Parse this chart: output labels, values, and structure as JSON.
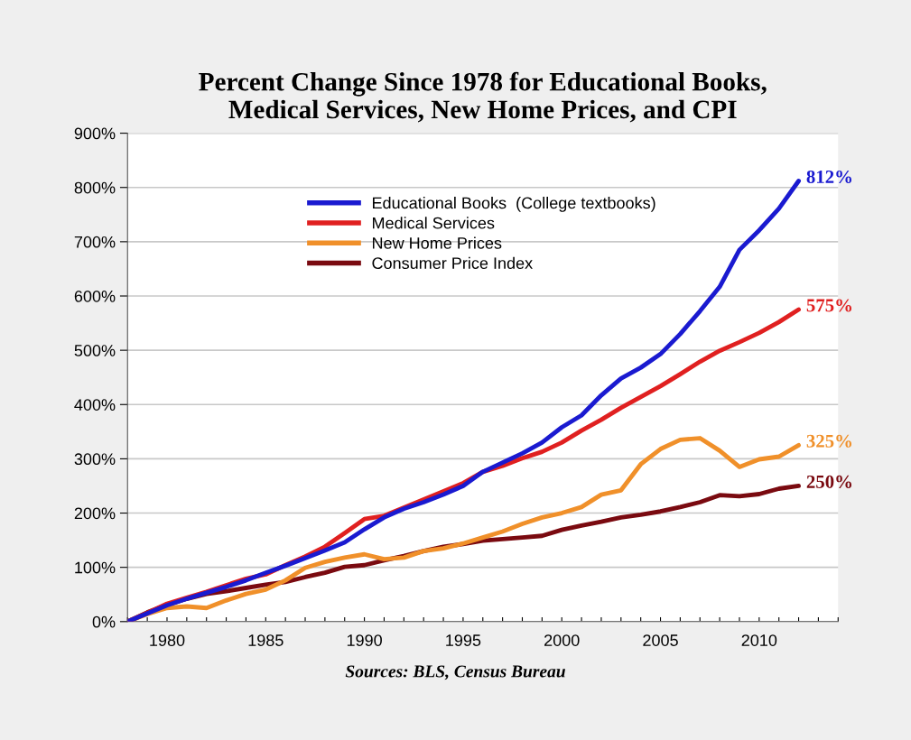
{
  "chart_data": {
    "type": "line",
    "title": "Percent Change Since 1978 for Educational Books,\nMedical Services, New Home Prices, and CPI",
    "x": [
      1978,
      1979,
      1980,
      1981,
      1982,
      1983,
      1984,
      1985,
      1986,
      1987,
      1988,
      1989,
      1990,
      1991,
      1992,
      1993,
      1994,
      1995,
      1996,
      1997,
      1998,
      1999,
      2000,
      2001,
      2002,
      2003,
      2004,
      2005,
      2006,
      2007,
      2008,
      2009,
      2010,
      2011,
      2012
    ],
    "series": [
      {
        "name": "Educational Books  (College textbooks)",
        "color": "#1a1ad0",
        "values": [
          0,
          15,
          30,
          42,
          53,
          64,
          76,
          90,
          103,
          117,
          131,
          146,
          170,
          192,
          208,
          220,
          234,
          250,
          276,
          293,
          310,
          330,
          358,
          380,
          417,
          448,
          468,
          493,
          530,
          572,
          617,
          685,
          721,
          761,
          812
        ]
      },
      {
        "name": "Medical Services",
        "color": "#e02020",
        "values": [
          0,
          16,
          33,
          44,
          55,
          67,
          79,
          87,
          104,
          120,
          138,
          163,
          189,
          195,
          210,
          225,
          240,
          255,
          276,
          287,
          301,
          313,
          330,
          352,
          372,
          394,
          414,
          434,
          456,
          479,
          499,
          515,
          532,
          552,
          575
        ]
      },
      {
        "name": "New Home Prices",
        "color": "#f0902a",
        "values": [
          0,
          14,
          25,
          28,
          25,
          39,
          51,
          59,
          76,
          99,
          110,
          118,
          124,
          115,
          118,
          130,
          135,
          144,
          155,
          166,
          180,
          192,
          200,
          211,
          234,
          242,
          290,
          318,
          335,
          338,
          315,
          285,
          299,
          304,
          325
        ]
      },
      {
        "name": "Consumer Price Index",
        "color": "#7a0a10",
        "values": [
          0,
          17,
          31,
          42,
          51,
          56,
          62,
          68,
          73,
          82,
          90,
          101,
          104,
          113,
          121,
          130,
          138,
          143,
          149,
          152,
          155,
          158,
          169,
          177,
          184,
          192,
          197,
          203,
          211,
          220,
          233,
          231,
          235,
          245,
          250
        ]
      }
    ],
    "xlim": [
      1978,
      2014
    ],
    "xticks": [
      {
        "value": 1978,
        "label": null
      },
      {
        "value": 1979,
        "label": null
      },
      {
        "value": 1980,
        "label": "1980"
      },
      {
        "value": 1981,
        "label": null
      },
      {
        "value": 1982,
        "label": null
      },
      {
        "value": 1983,
        "label": null
      },
      {
        "value": 1984,
        "label": null
      },
      {
        "value": 1985,
        "label": "1985"
      },
      {
        "value": 1986,
        "label": null
      },
      {
        "value": 1987,
        "label": null
      },
      {
        "value": 1988,
        "label": null
      },
      {
        "value": 1989,
        "label": null
      },
      {
        "value": 1990,
        "label": "1990"
      },
      {
        "value": 1991,
        "label": null
      },
      {
        "value": 1992,
        "label": null
      },
      {
        "value": 1993,
        "label": null
      },
      {
        "value": 1994,
        "label": null
      },
      {
        "value": 1995,
        "label": "1995"
      },
      {
        "value": 1996,
        "label": null
      },
      {
        "value": 1997,
        "label": null
      },
      {
        "value": 1998,
        "label": null
      },
      {
        "value": 1999,
        "label": null
      },
      {
        "value": 2000,
        "label": "2000"
      },
      {
        "value": 2001,
        "label": null
      },
      {
        "value": 2002,
        "label": null
      },
      {
        "value": 2003,
        "label": null
      },
      {
        "value": 2004,
        "label": null
      },
      {
        "value": 2005,
        "label": "2005"
      },
      {
        "value": 2006,
        "label": null
      },
      {
        "value": 2007,
        "label": null
      },
      {
        "value": 2008,
        "label": null
      },
      {
        "value": 2009,
        "label": null
      },
      {
        "value": 2010,
        "label": "2010"
      },
      {
        "value": 2011,
        "label": null
      },
      {
        "value": 2012,
        "label": null
      },
      {
        "value": 2013,
        "label": null
      },
      {
        "value": 2014,
        "label": null
      }
    ],
    "ylim": [
      0,
      900
    ],
    "yticks": [
      {
        "value": 0,
        "label": "0%"
      },
      {
        "value": 100,
        "label": "100%"
      },
      {
        "value": 200,
        "label": "200%"
      },
      {
        "value": 300,
        "label": "300%"
      },
      {
        "value": 400,
        "label": "400%"
      },
      {
        "value": 500,
        "label": "500%"
      },
      {
        "value": 600,
        "label": "600%"
      },
      {
        "value": 700,
        "label": "700%"
      },
      {
        "value": 800,
        "label": "800%"
      },
      {
        "value": 900,
        "label": "900%"
      }
    ],
    "grid": "y",
    "legend": "top",
    "line_style": "solid",
    "annotations": [
      "812%",
      "575%",
      "325%",
      "250%",
      "Sources: BLS, Census Bureau"
    ]
  }
}
